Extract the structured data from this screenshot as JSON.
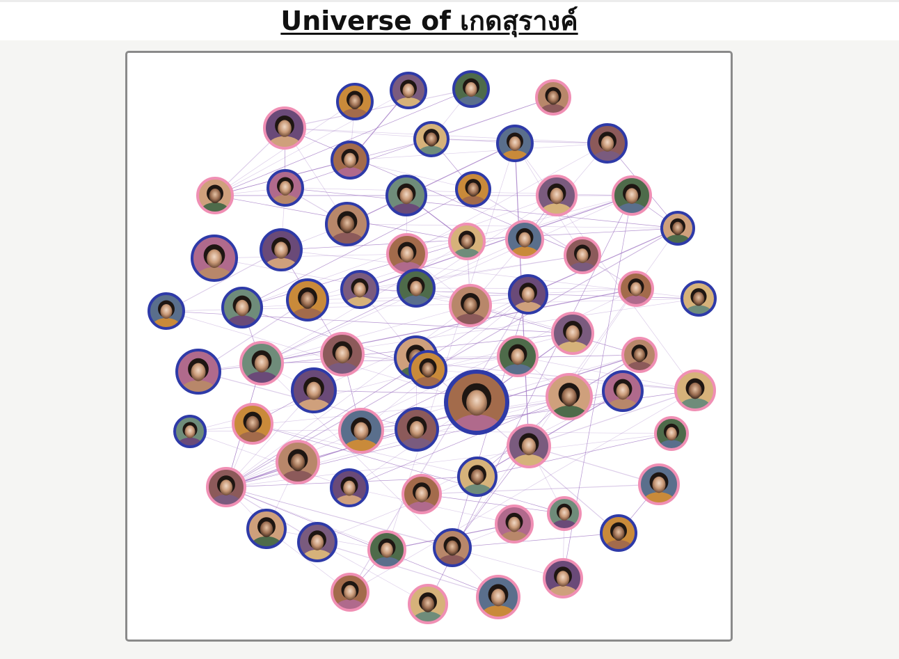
{
  "page": {
    "title": "Universe of เกดสุรางค์"
  },
  "colors": {
    "female_ring": "#f08fb4",
    "male_ring": "#2e3aa8",
    "edge": "#9b6fc0",
    "frame_border": "#8a8a8a"
  },
  "network": {
    "nodes": [
      {
        "id": 1,
        "gender": "m"
      },
      {
        "id": 2,
        "gender": "m"
      },
      {
        "id": 3,
        "gender": "m"
      },
      {
        "id": 4,
        "gender": "f"
      },
      {
        "id": 5,
        "gender": "f"
      },
      {
        "id": 6,
        "gender": "m"
      },
      {
        "id": 7,
        "gender": "m"
      },
      {
        "id": 8,
        "gender": "m"
      },
      {
        "id": 9,
        "gender": "m"
      },
      {
        "id": 10,
        "gender": "f"
      },
      {
        "id": 11,
        "gender": "m"
      },
      {
        "id": 12,
        "gender": "m"
      },
      {
        "id": 13,
        "gender": "m"
      },
      {
        "id": 14,
        "gender": "f"
      },
      {
        "id": 15,
        "gender": "f"
      },
      {
        "id": 16,
        "gender": "m"
      },
      {
        "id": 17,
        "gender": "m"
      },
      {
        "id": 18,
        "gender": "f"
      },
      {
        "id": 19,
        "gender": "f"
      },
      {
        "id": 20,
        "gender": "f"
      },
      {
        "id": 21,
        "gender": "f"
      },
      {
        "id": 22,
        "gender": "m"
      },
      {
        "id": 23,
        "gender": "m"
      },
      {
        "id": 24,
        "gender": "m"
      },
      {
        "id": 25,
        "gender": "m"
      },
      {
        "id": 26,
        "gender": "m"
      },
      {
        "id": 27,
        "gender": "m"
      },
      {
        "id": 28,
        "gender": "f"
      },
      {
        "id": 29,
        "gender": "m"
      },
      {
        "id": 30,
        "gender": "f"
      },
      {
        "id": 31,
        "gender": "m"
      },
      {
        "id": 32,
        "gender": "m"
      },
      {
        "id": 33,
        "gender": "f"
      },
      {
        "id": 34,
        "gender": "m"
      },
      {
        "id": 35,
        "gender": "m"
      },
      {
        "id": 36,
        "gender": "f"
      },
      {
        "id": 37,
        "gender": "m"
      },
      {
        "id": 38,
        "gender": "f"
      },
      {
        "id": 39,
        "gender": "f"
      },
      {
        "id": 40,
        "gender": "f"
      },
      {
        "id": 41,
        "gender": "m"
      },
      {
        "id": 42,
        "gender": "m"
      },
      {
        "id": 43,
        "gender": "f"
      },
      {
        "id": 44,
        "gender": "f"
      },
      {
        "id": 45,
        "gender": "m"
      },
      {
        "id": 46,
        "gender": "f"
      },
      {
        "id": 47,
        "gender": "m"
      },
      {
        "id": 48,
        "gender": "m"
      },
      {
        "id": 49,
        "gender": "f"
      },
      {
        "id": 50,
        "gender": "f"
      },
      {
        "id": 51,
        "gender": "f"
      },
      {
        "id": 52,
        "gender": "f"
      },
      {
        "id": 53,
        "gender": "m"
      },
      {
        "id": 54,
        "gender": "f"
      },
      {
        "id": 55,
        "gender": "m"
      },
      {
        "id": 56,
        "gender": "f"
      },
      {
        "id": 57,
        "gender": "f"
      },
      {
        "id": 58,
        "gender": "m"
      },
      {
        "id": 59,
        "gender": "f"
      },
      {
        "id": 60,
        "gender": "f"
      },
      {
        "id": 61,
        "gender": "m"
      },
      {
        "id": 62,
        "gender": "m"
      },
      {
        "id": 63,
        "gender": "f"
      },
      {
        "id": 64,
        "gender": "m"
      },
      {
        "id": 65,
        "gender": "f"
      },
      {
        "id": 66,
        "gender": "f"
      },
      {
        "id": 67,
        "gender": "f"
      },
      {
        "id": 68,
        "gender": "f"
      },
      {
        "id": 69,
        "gender": "m"
      },
      {
        "id": 70,
        "gender": "f"
      },
      {
        "id": 71,
        "gender": "m"
      },
      {
        "id": 72,
        "gender": "f"
      },
      {
        "id": 73,
        "gender": "m"
      },
      {
        "id": 74,
        "gender": "f"
      },
      {
        "id": 75,
        "gender": "f"
      },
      {
        "id": 76,
        "gender": "m"
      },
      {
        "id": 77,
        "gender": "f"
      }
    ],
    "edges": [
      [
        57,
        40
      ],
      [
        57,
        41
      ],
      [
        57,
        51
      ],
      [
        57,
        47
      ],
      [
        57,
        49
      ],
      [
        57,
        62
      ],
      [
        57,
        55
      ],
      [
        57,
        58
      ],
      [
        57,
        63
      ],
      [
        57,
        68
      ],
      [
        57,
        71
      ],
      [
        57,
        44
      ],
      [
        57,
        36
      ],
      [
        57,
        28
      ],
      [
        57,
        30
      ],
      [
        57,
        52
      ],
      [
        57,
        65
      ],
      [
        57,
        77
      ],
      [
        57,
        72
      ],
      [
        46,
        57
      ],
      [
        46,
        40
      ],
      [
        46,
        53
      ],
      [
        46,
        39
      ],
      [
        46,
        44
      ],
      [
        46,
        55
      ],
      [
        15,
        10
      ],
      [
        15,
        11
      ],
      [
        15,
        22
      ],
      [
        15,
        18
      ],
      [
        15,
        25
      ],
      [
        15,
        26
      ],
      [
        10,
        11
      ],
      [
        10,
        12
      ],
      [
        10,
        19
      ],
      [
        10,
        7
      ],
      [
        10,
        5
      ],
      [
        10,
        6
      ],
      [
        5,
        8
      ],
      [
        5,
        9
      ],
      [
        5,
        11
      ],
      [
        5,
        3
      ],
      [
        5,
        16
      ],
      [
        5,
        21
      ],
      [
        1,
        6
      ],
      [
        1,
        10
      ],
      [
        2,
        6
      ],
      [
        2,
        10
      ],
      [
        3,
        7
      ],
      [
        3,
        10
      ],
      [
        7,
        10
      ],
      [
        7,
        9
      ],
      [
        7,
        13
      ],
      [
        9,
        18
      ],
      [
        9,
        28
      ],
      [
        9,
        22
      ],
      [
        11,
        16
      ],
      [
        11,
        17
      ],
      [
        11,
        22
      ],
      [
        12,
        18
      ],
      [
        12,
        19
      ],
      [
        12,
        19
      ],
      [
        16,
        17
      ],
      [
        16,
        22
      ],
      [
        17,
        22
      ],
      [
        17,
        31
      ],
      [
        17,
        32
      ],
      [
        17,
        33
      ],
      [
        18,
        23
      ],
      [
        18,
        28
      ],
      [
        19,
        24
      ],
      [
        19,
        28
      ],
      [
        20,
        27
      ],
      [
        20,
        14
      ],
      [
        21,
        25
      ],
      [
        21,
        26
      ],
      [
        22,
        29
      ],
      [
        23,
        28
      ],
      [
        24,
        30
      ],
      [
        24,
        36
      ],
      [
        25,
        29
      ],
      [
        25,
        35
      ],
      [
        26,
        31
      ],
      [
        26,
        34
      ],
      [
        27,
        30
      ],
      [
        27,
        36
      ],
      [
        28,
        29
      ],
      [
        28,
        36
      ],
      [
        28,
        40
      ],
      [
        29,
        41
      ],
      [
        29,
        44
      ],
      [
        30,
        36
      ],
      [
        31,
        32
      ],
      [
        31,
        35
      ],
      [
        32,
        38
      ],
      [
        32,
        42
      ],
      [
        33,
        43
      ],
      [
        33,
        44
      ],
      [
        34,
        39
      ],
      [
        34,
        45
      ],
      [
        35,
        38
      ],
      [
        35,
        45
      ],
      [
        36,
        41
      ],
      [
        36,
        40
      ],
      [
        37,
        39
      ],
      [
        37,
        43
      ],
      [
        38,
        42
      ],
      [
        38,
        48
      ],
      [
        39,
        43
      ],
      [
        39,
        44
      ],
      [
        40,
        44
      ],
      [
        40,
        46
      ],
      [
        41,
        49
      ],
      [
        42,
        48
      ],
      [
        42,
        53
      ],
      [
        43,
        45
      ],
      [
        44,
        47
      ],
      [
        44,
        51
      ],
      [
        45,
        52
      ],
      [
        45,
        48
      ],
      [
        47,
        54
      ],
      [
        47,
        55
      ],
      [
        48,
        53
      ],
      [
        49,
        55
      ],
      [
        49,
        60
      ],
      [
        50,
        60
      ],
      [
        50,
        56
      ],
      [
        51,
        55
      ],
      [
        52,
        58
      ],
      [
        53,
        59
      ],
      [
        54,
        60
      ],
      [
        54,
        56
      ],
      [
        55,
        62
      ],
      [
        56,
        61
      ],
      [
        58,
        63
      ],
      [
        58,
        66
      ],
      [
        59,
        63
      ],
      [
        59,
        64
      ],
      [
        60,
        65
      ],
      [
        61,
        64
      ],
      [
        62,
        67
      ],
      [
        62,
        68
      ],
      [
        63,
        66
      ],
      [
        63,
        69
      ],
      [
        64,
        71
      ],
      [
        65,
        70
      ],
      [
        66,
        72
      ],
      [
        66,
        74
      ],
      [
        67,
        70
      ],
      [
        68,
        73
      ],
      [
        69,
        74
      ],
      [
        69,
        75
      ],
      [
        70,
        73
      ],
      [
        71,
        76
      ],
      [
        72,
        77
      ],
      [
        73,
        76
      ],
      [
        74,
        75
      ],
      [
        75,
        77
      ],
      [
        14,
        27
      ],
      [
        14,
        24
      ],
      [
        13,
        24
      ],
      [
        13,
        30
      ],
      [
        4,
        7
      ],
      [
        4,
        11
      ],
      [
        6,
        9
      ],
      [
        6,
        13
      ],
      [
        8,
        16
      ],
      [
        8,
        21
      ],
      [
        19,
        36
      ],
      [
        24,
        37
      ],
      [
        30,
        50
      ],
      [
        37,
        61
      ],
      [
        41,
        46
      ],
      [
        27,
        38
      ]
    ]
  }
}
